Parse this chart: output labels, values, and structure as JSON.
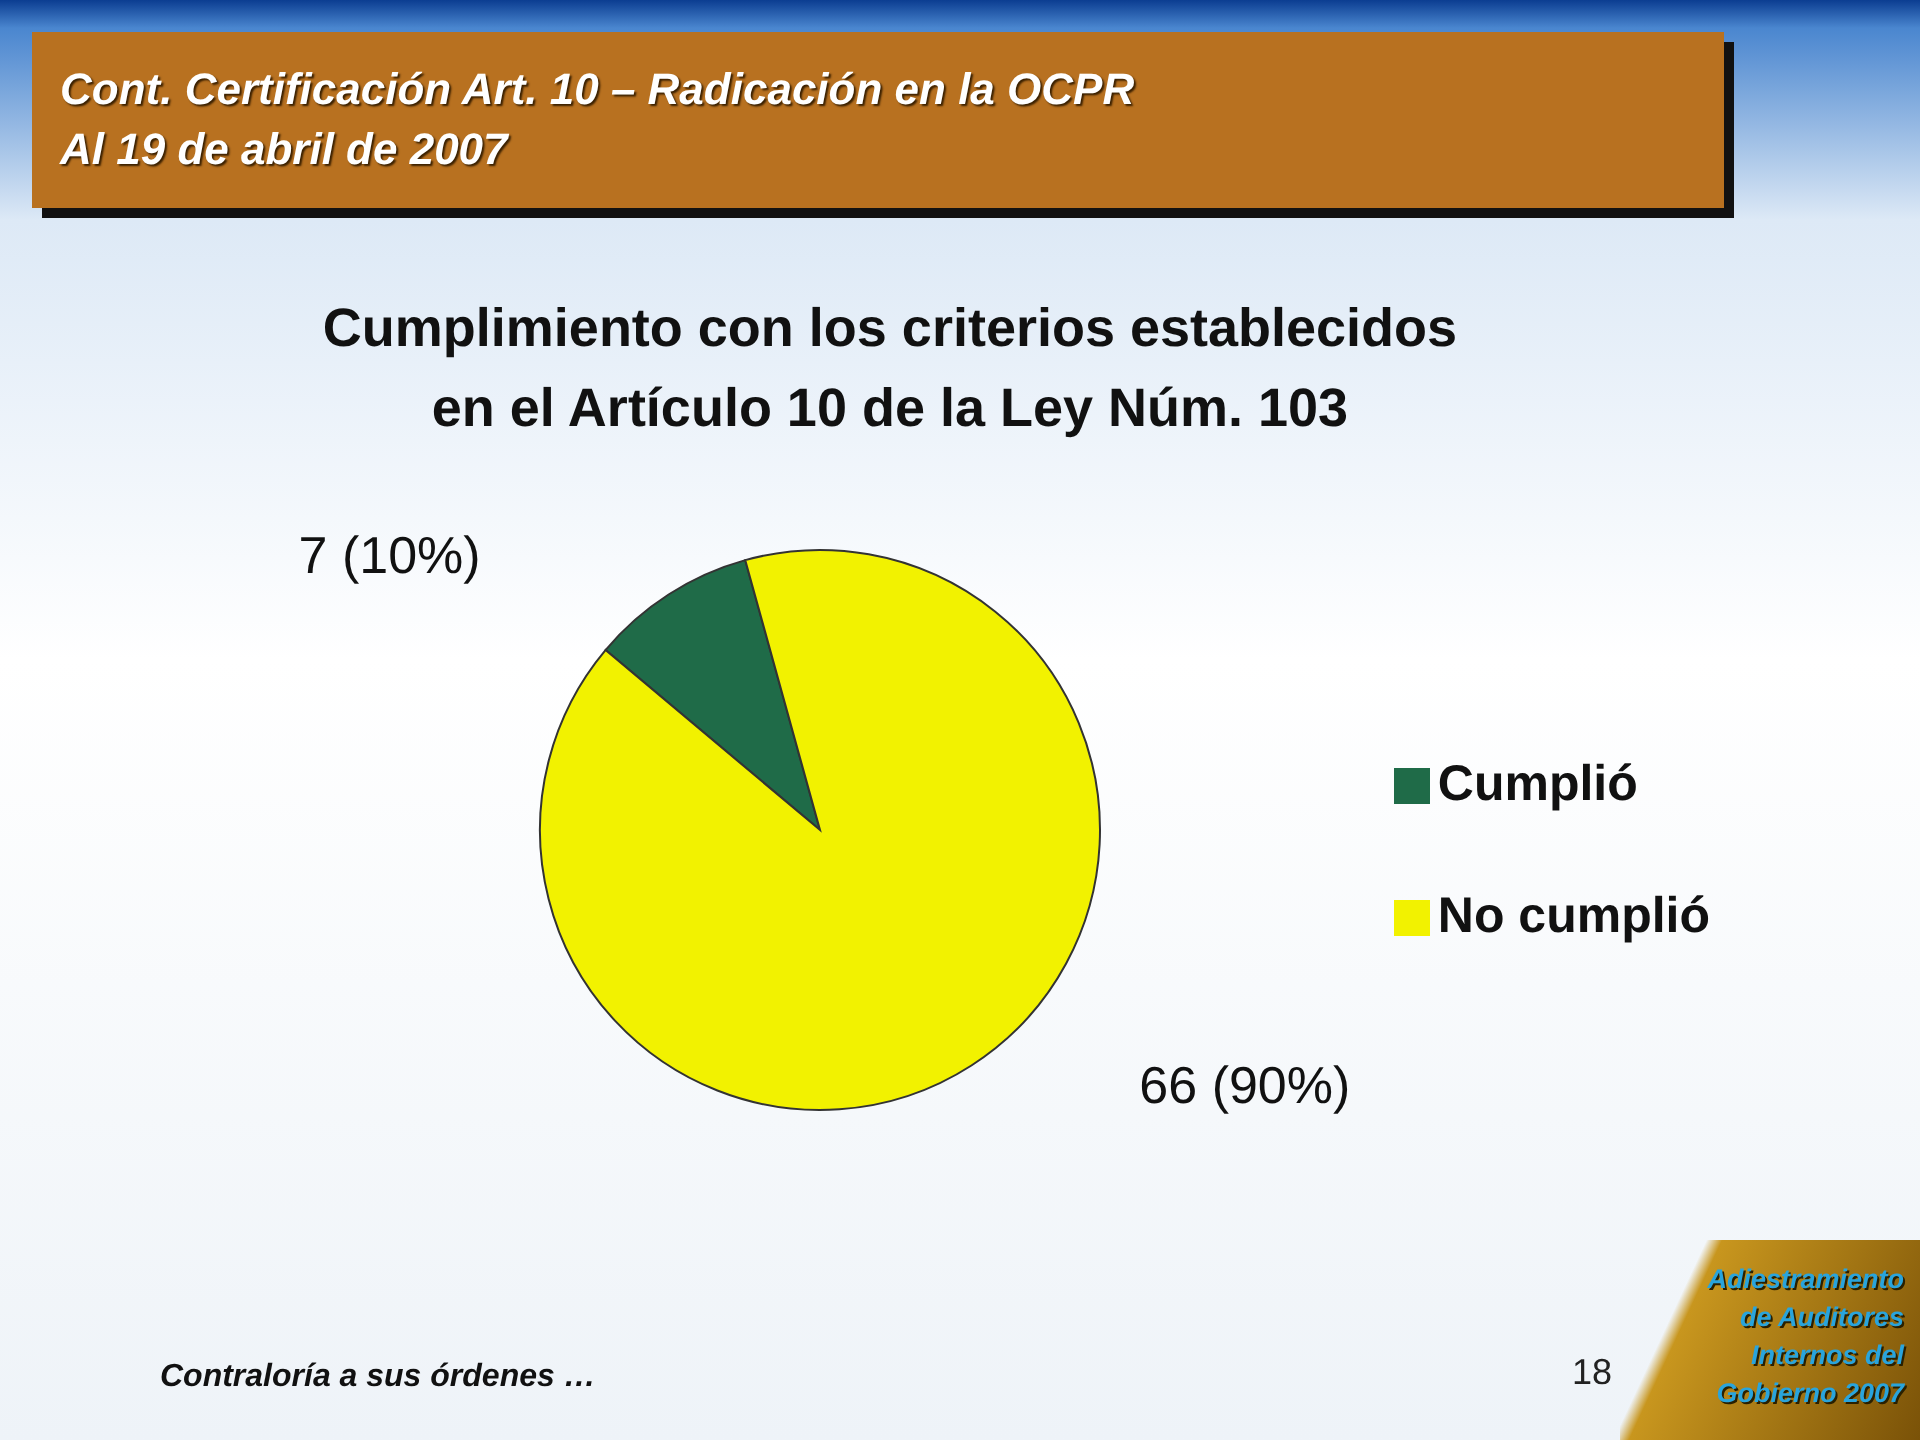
{
  "chart_data": {
    "type": "pie",
    "title": "Cont. Certificación Art. 10 – Radicación en la OCPR\nAl 19 de abril de 2007",
    "subtitle": "Cumplimiento con los criterios establecidos\nen el Artículo 10 de la Ley Núm. 103",
    "categories": [
      "Cumplió",
      "No cumplió"
    ],
    "values": [
      7,
      66
    ],
    "colors": [
      "#1f6b48",
      "#f2f200"
    ],
    "value_labels": [
      "7 (10%)",
      "66 (90%)"
    ],
    "legend": "right",
    "annotations": [
      "Contraloría a sus órdenes …",
      "18",
      "Adiestramiento\nde Auditores\nInternos del\nGobierno 2007"
    ]
  }
}
